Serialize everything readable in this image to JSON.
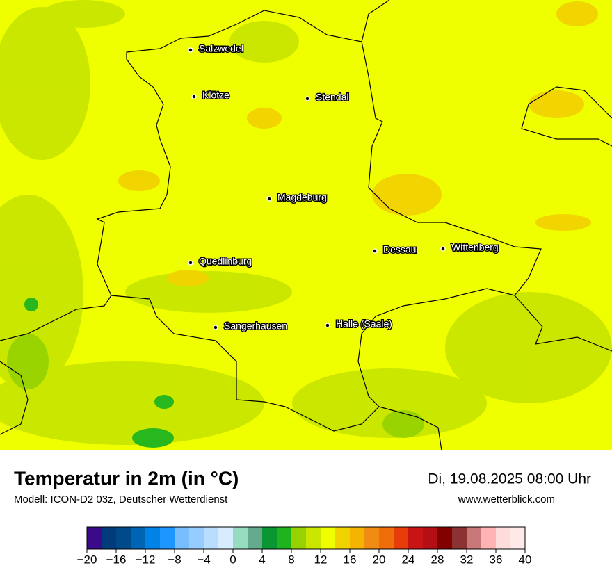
{
  "map": {
    "cities": [
      "Salzwedel",
      "Klötze",
      "Stendal",
      "Magdeburg",
      "Dessau",
      "Wittenberg",
      "Quedlinburg",
      "Sangerhausen",
      "Halle (Saale)"
    ]
  },
  "footer": {
    "title": "Temperatur in 2m (in °C)",
    "subtitle": "Modell: ICON-D2 03z, Deutscher Wetterdienst",
    "date": "Di, 19.08.2025 08:00 Uhr",
    "website": "www.wetterblick.com"
  },
  "colorbar": {
    "lim": [
      -20,
      40
    ],
    "colors": [
      "#3a0a8a",
      "#003c7c",
      "#004a8a",
      "#0064b4",
      "#0082e6",
      "#1e96ff",
      "#78beff",
      "#96ccff",
      "#b9ddff",
      "#d6ecff",
      "#96dcbe",
      "#64aa8c",
      "#0a9632",
      "#1eb41e",
      "#96d200",
      "#c8e600",
      "#f0ff00",
      "#f0d200",
      "#f5b400",
      "#f08c14",
      "#f06e0a",
      "#e63c0a",
      "#c81414",
      "#b40f14",
      "#820000",
      "#8c3232",
      "#c87878",
      "#ffb4b4",
      "#ffdcdc",
      "#ffe8e8"
    ],
    "ticks": [
      {
        "value": -20,
        "label": "−20"
      },
      {
        "value": -16,
        "label": "−16"
      },
      {
        "value": -12,
        "label": "−12"
      },
      {
        "value": -8,
        "label": "−8"
      },
      {
        "value": -4,
        "label": "−4"
      },
      0,
      4,
      8,
      12,
      16,
      20,
      24,
      28,
      32,
      36,
      40
    ]
  }
}
